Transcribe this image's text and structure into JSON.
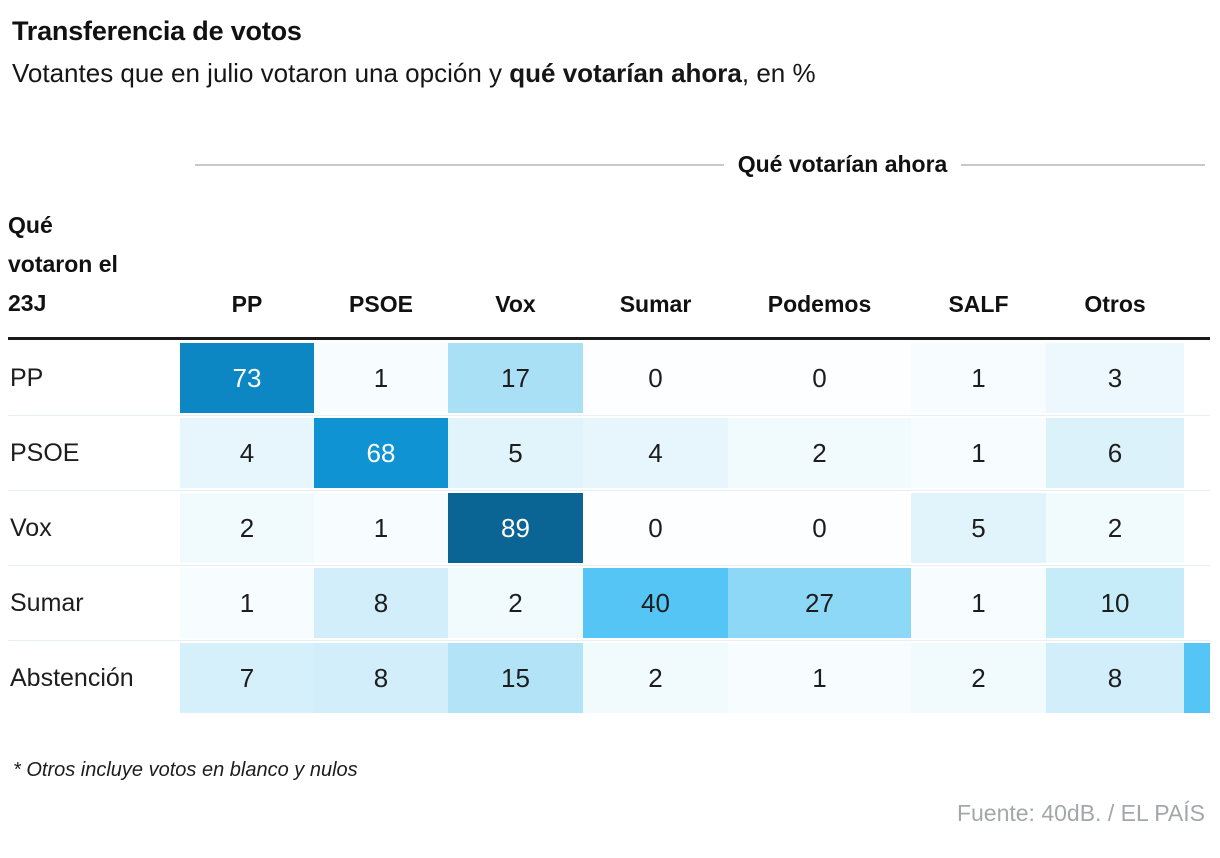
{
  "header": {
    "title": "Transferencia de votos",
    "subtitle_prefix": "Votantes que en julio votaron una opción y ",
    "subtitle_bold": "qué votarían ahora",
    "subtitle_suffix": ", en %"
  },
  "group_header": "Qué votarían ahora",
  "row_axis_label": "Qué\nvotaron el\n23J",
  "columns": [
    "PP",
    "PSOE",
    "Vox",
    "Sumar",
    "Podemos",
    "SALF",
    "Otros"
  ],
  "rows": [
    {
      "label": "PP",
      "values": [
        73,
        1,
        17,
        0,
        0,
        1,
        3
      ],
      "overflow_cell": false
    },
    {
      "label": "PSOE",
      "values": [
        4,
        68,
        5,
        4,
        2,
        1,
        6
      ],
      "overflow_cell": false
    },
    {
      "label": "Vox",
      "values": [
        2,
        1,
        89,
        0,
        0,
        5,
        2
      ],
      "overflow_cell": false
    },
    {
      "label": "Sumar",
      "values": [
        1,
        8,
        2,
        40,
        27,
        1,
        10
      ],
      "overflow_cell": false
    },
    {
      "label": "Abstención",
      "values": [
        7,
        8,
        15,
        2,
        1,
        2,
        8
      ],
      "overflow_cell": true
    }
  ],
  "footnote": "* Otros incluye votos en blanco y nulos",
  "source": "Fuente: 40dB. / EL PAÍS",
  "heat_colors": {
    "0": "#fcfeff",
    "1": "#f7fcfe",
    "2": "#f1fafd",
    "3": "#ecf8fd",
    "4": "#e7f6fc",
    "5": "#e1f4fc",
    "6": "#dcf2fb",
    "7": "#d6f0fb",
    "8": "#d1eefa",
    "10": "#c6ebf9",
    "15": "#b2e3f7",
    "17": "#aae0f6",
    "27": "#8ed8f7",
    "40": "#55c5f6",
    "68": "#0f93d2",
    "73": "#0d86c4",
    "89": "#0a6494"
  },
  "light_text_min": 68,
  "light_text_color": "#ffffff",
  "dark_text_color": "#1d1d1d",
  "overflow_color": "#55c5f6",
  "chart_data": {
    "type": "heatmap",
    "title": "Transferencia de votos",
    "subtitle": "Votantes que en julio votaron una opción y qué votarían ahora, en %",
    "x_label": "Qué votarían ahora",
    "y_label": "Qué votaron el 23J",
    "x_categories": [
      "PP",
      "PSOE",
      "Vox",
      "Sumar",
      "Podemos",
      "SALF",
      "Otros"
    ],
    "y_categories": [
      "PP",
      "PSOE",
      "Vox",
      "Sumar",
      "Abstención"
    ],
    "values": [
      [
        73,
        1,
        17,
        0,
        0,
        1,
        3
      ],
      [
        4,
        68,
        5,
        4,
        2,
        1,
        6
      ],
      [
        2,
        1,
        89,
        0,
        0,
        5,
        2
      ],
      [
        1,
        8,
        2,
        40,
        27,
        1,
        10
      ],
      [
        7,
        8,
        15,
        2,
        1,
        2,
        8
      ]
    ],
    "unit": "%",
    "color_scale": [
      "#fcfeff",
      "#55c5f6",
      "#0a6494"
    ],
    "footnote": "* Otros incluye votos en blanco y nulos",
    "source": "Fuente: 40dB. / EL PAÍS"
  }
}
